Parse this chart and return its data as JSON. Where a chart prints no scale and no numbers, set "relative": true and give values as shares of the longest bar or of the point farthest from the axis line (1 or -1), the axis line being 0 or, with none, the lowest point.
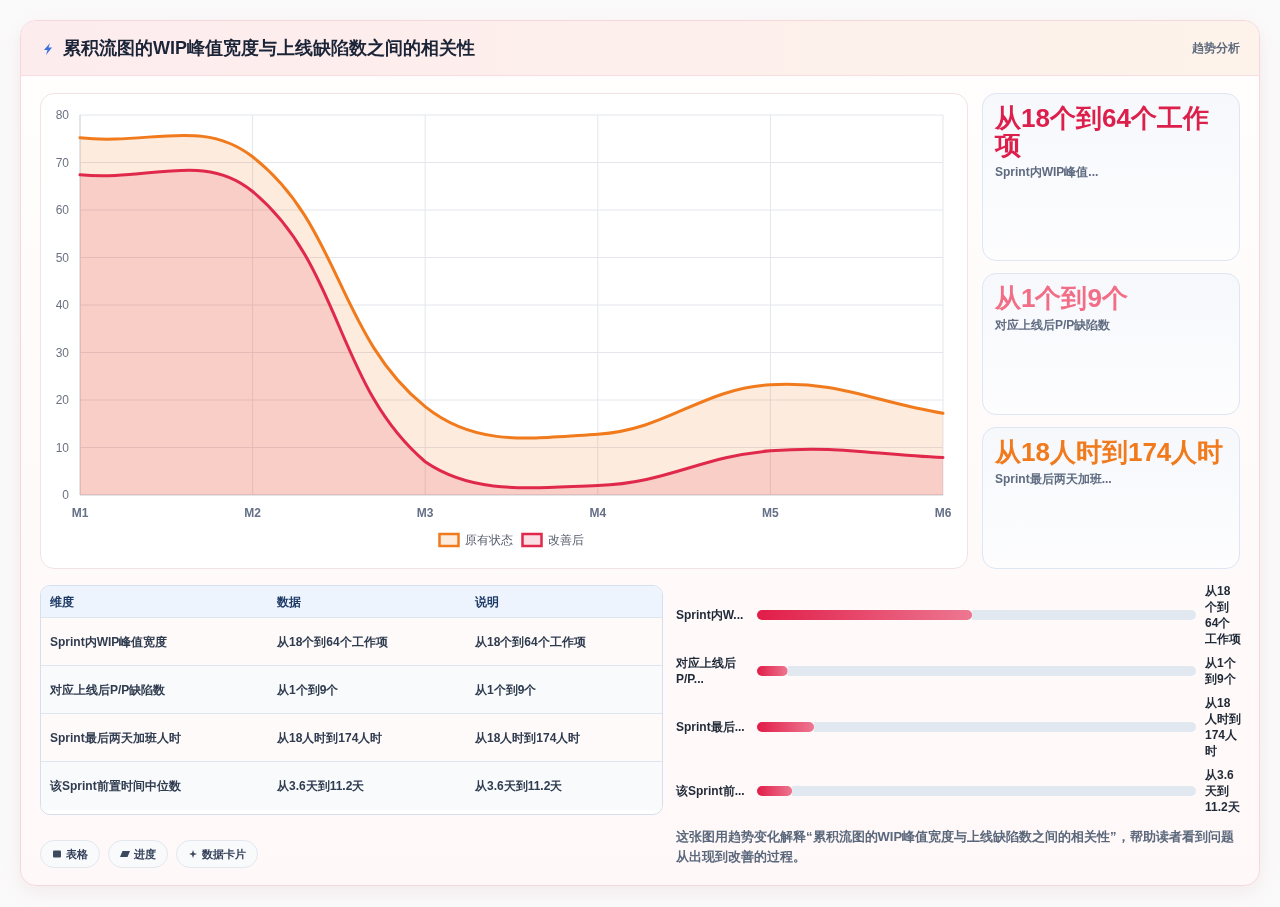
{
  "chart_data": [
    {
      "type": "other",
      "title": "累积流图的WIP峰值宽度与上线缺陷数之间的相关性",
      "subtitle": "趋势分析"
    },
    {
      "type": "area",
      "categories": [
        "M1",
        "M2",
        "M3",
        "M4",
        "M5",
        "M6"
      ],
      "series": [
        {
          "name": "原有状态",
          "color": "#f07a1c",
          "values": [
            75.2,
            71.2,
            18.6,
            12.8,
            23.2,
            17.2
          ]
        },
        {
          "name": "改善后",
          "color": "#e0294a",
          "values": [
            67.4,
            63.9,
            7.0,
            2.0,
            9.3,
            7.9
          ]
        }
      ],
      "ylim": [
        0,
        80
      ],
      "yticks": [
        0,
        10,
        20,
        30,
        40,
        50,
        60,
        70,
        80
      ],
      "grid": true,
      "legend": "bottom"
    },
    {
      "type": "other",
      "annotations": [
        "从18个到64个工作项",
        "Sprint内WIP峰值...",
        "从1个到9个",
        "对应上线后P/P缺陷数",
        "从18人时到174人时",
        "Sprint最后两天加班..."
      ],
      "colors": [
        "#dc1f4b",
        "#f26d86",
        "#f07a1c"
      ]
    },
    {
      "type": "other",
      "annotations": [
        "维度",
        "数据",
        "说明",
        "Sprint内WIP峰值宽度",
        "从18个到64个工作项",
        "从18个到64个工作项",
        "对应上线后P/P缺陷数",
        "从1个到9个",
        "从1个到9个",
        "Sprint最后两天加班人时",
        "从18人时到174人时",
        "从18人时到174人时",
        "该Sprint前置时间中位数",
        "从3.6天到11.2天",
        "从3.6天到11.2天"
      ]
    },
    {
      "type": "bar",
      "orientation": "horizontal",
      "stacked": true,
      "relative": true,
      "categories": [
        "Sprint内W...",
        "对应上线后P/P...",
        "Sprint最后...",
        "该Sprint前..."
      ],
      "series": [
        {
          "color": "#e11d48",
          "values": [
            0.49,
            0.07,
            0.13,
            0.08
          ]
        },
        {
          "color": "#e2e8f0",
          "values": [
            0.51,
            0.93,
            0.87,
            0.92
          ]
        }
      ],
      "value_labels": [
        "从18个到64个工作项",
        "从1个到9个",
        "从18人时到174人时",
        "从3.6天到11.2天"
      ],
      "annotations": [
        "这张图用趋势变化解释“累积流图的WIP峰值宽度与上线缺陷数之间的相关性”，帮助读者看到问题从出现到改善的过程。"
      ]
    },
    {
      "type": "other",
      "annotations": [
        "表格",
        "进度",
        "数据卡片"
      ]
    }
  ]
}
